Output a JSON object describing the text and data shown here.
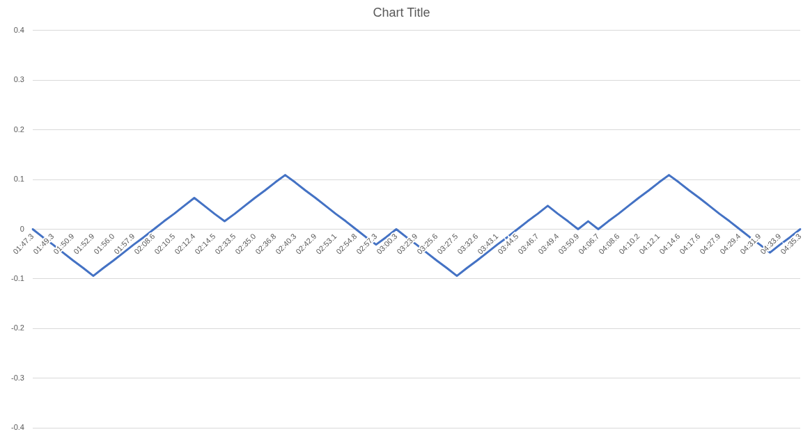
{
  "chart_data": {
    "type": "line",
    "title": "Chart Title",
    "categories": [
      "01:47.3",
      null,
      "01:49.3",
      null,
      "01:50.9",
      null,
      "01:52.9",
      null,
      "01:56.0",
      null,
      "01:57.9",
      null,
      "02:08.6",
      null,
      "02:10.5",
      null,
      "02:12.4",
      null,
      "02:14.5",
      null,
      "02:33.5",
      null,
      "02:35.0",
      null,
      "02:36.8",
      null,
      "02:40.3",
      null,
      "02:42.9",
      null,
      "02:53.1",
      null,
      "02:54.8",
      null,
      "02:57.3",
      null,
      "03:00.3",
      null,
      "03:23.9",
      null,
      "03:25.6",
      null,
      "03:27.5",
      null,
      "03:32.6",
      null,
      "03:43.1",
      null,
      "03:44.5",
      null,
      "03:46.7",
      null,
      "03:49.4",
      null,
      "03:50.9",
      null,
      "04:06.7",
      null,
      "04:08.6",
      null,
      "04:10.2",
      null,
      "04:12.1",
      null,
      "04:14.6",
      null,
      "04:17.6",
      null,
      "04:27.9",
      null,
      "04:29.4",
      null,
      "04:31.9",
      null,
      "04:33.9",
      null,
      "04:35.3"
    ],
    "series": [
      {
        "color": "#4472c4",
        "values": [
          0,
          -0.016,
          -0.031,
          -0.047,
          -0.063,
          -0.078,
          -0.094,
          -0.078,
          -0.063,
          -0.047,
          -0.031,
          -0.016,
          0,
          0.016,
          0.031,
          0.047,
          0.063,
          0.047,
          0.031,
          0.016,
          0.031,
          0.047,
          0.063,
          0.078,
          0.094,
          0.109,
          0.094,
          0.078,
          0.063,
          0.047,
          0.031,
          0.016,
          0,
          -0.016,
          -0.031,
          -0.016,
          0,
          -0.016,
          -0.031,
          -0.047,
          -0.063,
          -0.078,
          -0.094,
          -0.078,
          -0.063,
          -0.047,
          -0.031,
          -0.016,
          0,
          0.016,
          0.031,
          0.047,
          0.031,
          0.016,
          0,
          0.016,
          0,
          0.016,
          0.031,
          0.047,
          0.063,
          0.078,
          0.094,
          0.109,
          0.094,
          0.078,
          0.063,
          0.047,
          0.031,
          0.016,
          0,
          -0.016,
          -0.031,
          -0.047,
          -0.031,
          -0.016,
          0
        ]
      }
    ],
    "ylim": [
      -0.4,
      0.4
    ],
    "yticks": [
      -0.4,
      -0.3,
      -0.2,
      -0.1,
      0,
      0.1,
      0.2,
      0.3,
      0.4
    ],
    "grid": "y",
    "legend": false,
    "marker": "none",
    "line_style": "solid"
  }
}
